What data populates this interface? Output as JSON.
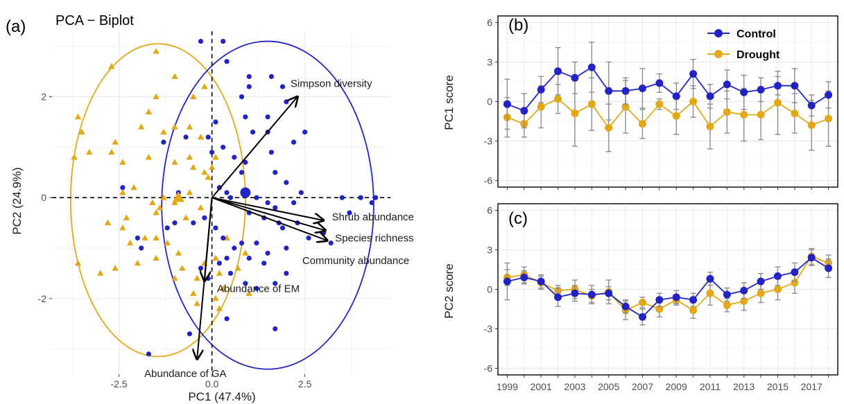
{
  "colors": {
    "control": "#2323c3",
    "drought": "#e2a817",
    "errorbar": "#8c8c8c",
    "grid": "#ebebeb",
    "axis": "#000000"
  },
  "panel_a_label": "(a)",
  "panel_b_label": "(b)",
  "panel_c_label": "(c)",
  "chart_data": [
    {
      "type": "scatter",
      "title": "PCA − Biplot",
      "xlabel": "PC1 (47.4%)",
      "ylabel": "PC2 (24.9%)",
      "xlim": [
        -4.3,
        4.8
      ],
      "ylim": [
        -3.5,
        3.3
      ],
      "xticks": [
        -2.5,
        0.0,
        2.5
      ],
      "yticks": [
        -2,
        0,
        2
      ],
      "xtick_labels": [
        "-2.5",
        "0.0",
        "2.5"
      ],
      "ytick_labels": [
        "-2",
        "0",
        "2"
      ],
      "grid": true,
      "reference_lines": "dashed lines at x=0 and y=0",
      "series": [
        {
          "name": "Control",
          "marker": "circle",
          "points": [
            [
              -0.3,
              3.1
            ],
            [
              0.3,
              3.1
            ],
            [
              0.4,
              2.7
            ],
            [
              1.0,
              2.4
            ],
            [
              1.0,
              2.2
            ],
            [
              0.8,
              2.0
            ],
            [
              1.9,
              2.2
            ],
            [
              1.6,
              2.4
            ],
            [
              2.0,
              1.9
            ],
            [
              1.5,
              1.6
            ],
            [
              0.9,
              1.6
            ],
            [
              1.1,
              1.3
            ],
            [
              1.5,
              1.3
            ],
            [
              0.1,
              1.5
            ],
            [
              -0.1,
              1.2
            ],
            [
              0.3,
              1.0
            ],
            [
              0.0,
              0.9
            ],
            [
              0.6,
              0.8
            ],
            [
              0.9,
              0.7
            ],
            [
              0.8,
              0.5
            ],
            [
              1.6,
              0.9
            ],
            [
              2.2,
              1.1
            ],
            [
              2.5,
              1.3
            ],
            [
              1.7,
              0.5
            ],
            [
              2.0,
              0.3
            ],
            [
              2.4,
              0.1
            ],
            [
              -1.3,
              1.1
            ],
            [
              -0.7,
              1.2
            ],
            [
              -2.4,
              0.2
            ],
            [
              -0.9,
              0.1
            ],
            [
              0.2,
              0.2
            ],
            [
              0.4,
              0.1
            ],
            [
              0.5,
              0.0
            ],
            [
              1.2,
              0.0
            ],
            [
              1.5,
              -0.1
            ],
            [
              1.7,
              -0.2
            ],
            [
              1.0,
              -0.3
            ],
            [
              1.4,
              -0.4
            ],
            [
              1.8,
              -0.5
            ],
            [
              1.9,
              -0.6
            ],
            [
              2.2,
              -0.1
            ],
            [
              2.3,
              -0.5
            ],
            [
              2.0,
              -1.0
            ],
            [
              2.6,
              -0.8
            ],
            [
              3.0,
              -0.7
            ],
            [
              3.2,
              -0.9
            ],
            [
              3.7,
              -0.3
            ],
            [
              4.0,
              0.0
            ],
            [
              4.3,
              -0.1
            ],
            [
              4.4,
              0.0
            ],
            [
              3.5,
              0.0
            ],
            [
              -0.2,
              -0.4
            ],
            [
              -0.5,
              -0.5
            ],
            [
              0.1,
              -0.6
            ],
            [
              0.3,
              -0.8
            ],
            [
              0.8,
              -0.9
            ],
            [
              1.2,
              -0.9
            ],
            [
              1.5,
              -1.1
            ],
            [
              1.4,
              -1.3
            ],
            [
              1.0,
              -1.2
            ],
            [
              0.6,
              -1.0
            ],
            [
              0.4,
              -1.2
            ],
            [
              0.2,
              -1.3
            ],
            [
              -0.3,
              -1.4
            ],
            [
              -0.1,
              -1.6
            ],
            [
              0.5,
              -1.5
            ],
            [
              0.9,
              -1.7
            ],
            [
              1.2,
              -1.8
            ],
            [
              1.7,
              -1.7
            ],
            [
              2.0,
              -1.5
            ],
            [
              -1.0,
              -0.5
            ],
            [
              -2.0,
              -0.8
            ],
            [
              -1.9,
              -1.0
            ],
            [
              -1.2,
              -0.6
            ],
            [
              -1.7,
              -3.1
            ],
            [
              -0.6,
              -2.7
            ],
            [
              0.4,
              -2.4
            ],
            [
              1.7,
              -2.6
            ]
          ]
        },
        {
          "name": "Drought",
          "marker": "triangle",
          "points": [
            [
              -1.5,
              2.9
            ],
            [
              -2.7,
              2.6
            ],
            [
              -1.0,
              2.4
            ],
            [
              -0.2,
              2.2
            ],
            [
              -0.5,
              2.0
            ],
            [
              -1.5,
              2.0
            ],
            [
              -1.7,
              1.7
            ],
            [
              -1.9,
              1.4
            ],
            [
              -1.0,
              1.4
            ],
            [
              -1.3,
              1.3
            ],
            [
              -0.6,
              1.4
            ],
            [
              -0.3,
              1.2
            ],
            [
              -3.6,
              1.6
            ],
            [
              -3.5,
              1.3
            ],
            [
              -2.6,
              1.1
            ],
            [
              -3.3,
              0.9
            ],
            [
              -3.7,
              0.8
            ],
            [
              -2.7,
              0.9
            ],
            [
              -2.4,
              0.7
            ],
            [
              -1.7,
              0.8
            ],
            [
              -1.0,
              0.7
            ],
            [
              -0.6,
              0.8
            ],
            [
              -0.5,
              0.6
            ],
            [
              -0.2,
              0.5
            ],
            [
              -0.1,
              0.4
            ],
            [
              0.0,
              0.6
            ],
            [
              0.1,
              0.8
            ],
            [
              -2.4,
              0.1
            ],
            [
              -2.1,
              0.2
            ],
            [
              -1.6,
              -0.1
            ],
            [
              -1.5,
              -0.3
            ],
            [
              -1.4,
              -0.2
            ],
            [
              -1.0,
              -0.1
            ],
            [
              -1.3,
              0.0
            ],
            [
              -0.6,
              0.1
            ],
            [
              -0.3,
              -0.2
            ],
            [
              -0.7,
              -0.4
            ],
            [
              -2.3,
              -0.4
            ],
            [
              -2.8,
              -0.5
            ],
            [
              -2.4,
              -0.6
            ],
            [
              -2.2,
              -0.9
            ],
            [
              -1.8,
              -0.8
            ],
            [
              -1.5,
              -0.8
            ],
            [
              -1.2,
              -0.9
            ],
            [
              -1.5,
              -1.2
            ],
            [
              -2.0,
              -1.3
            ],
            [
              -2.6,
              -1.4
            ],
            [
              -3.0,
              -1.5
            ],
            [
              -3.6,
              -1.3
            ],
            [
              -0.9,
              -1.1
            ],
            [
              -0.8,
              -1.4
            ],
            [
              -1.0,
              -1.6
            ],
            [
              -0.4,
              -1.6
            ],
            [
              -0.5,
              -1.9
            ],
            [
              -0.2,
              -1.3
            ],
            [
              0.1,
              -1.2
            ],
            [
              0.2,
              -1.5
            ],
            [
              0.3,
              -1.8
            ],
            [
              0.1,
              -2.0
            ],
            [
              -0.4,
              -2.1
            ],
            [
              0.2,
              -2.2
            ],
            [
              1.0,
              -1.9
            ],
            [
              0.7,
              -1.4
            ],
            [
              0.9,
              -1.1
            ],
            [
              0.4,
              -0.8
            ]
          ]
        }
      ],
      "centroids": {
        "Control": [
          0.9,
          0.1
        ],
        "Drought": [
          -0.9,
          0.0
        ]
      },
      "ellipses": {
        "Control": {
          "center": [
            1.5,
            -0.15
          ],
          "rx": 2.85,
          "ry": 3.25
        },
        "Drought": {
          "center": [
            -1.45,
            -0.05
          ],
          "rx": 2.35,
          "ry": 3.1
        }
      },
      "loadings": [
        {
          "label": "Simpson diversity",
          "x": 2.3,
          "y": 2.0
        },
        {
          "label": "Shrub abundance",
          "x": 3.0,
          "y": -0.45
        },
        {
          "label": "Species richness",
          "x": 3.05,
          "y": -0.65
        },
        {
          "label": "Community abundance",
          "x": 3.1,
          "y": -0.85
        },
        {
          "label": "Abundance of EM",
          "x": -0.2,
          "y": -1.65
        },
        {
          "label": "Abundance of GA",
          "x": -0.4,
          "y": -3.2
        }
      ]
    },
    {
      "type": "line",
      "ylabel": "PC1 score",
      "ylim": [
        -6.5,
        6.5
      ],
      "yticks": [
        -6,
        -3,
        0,
        3,
        6
      ],
      "ytick_labels": [
        "-6",
        "-3",
        "0",
        "3",
        "6"
      ],
      "grid": true,
      "legend": "top-right",
      "x": [
        1999,
        2000,
        2001,
        2002,
        2003,
        2004,
        2005,
        2006,
        2007,
        2008,
        2009,
        2010,
        2011,
        2012,
        2013,
        2014,
        2015,
        2016,
        2017,
        2018
      ],
      "series": [
        {
          "name": "Control",
          "values": [
            -0.2,
            -0.7,
            0.9,
            2.3,
            1.8,
            2.6,
            0.8,
            0.8,
            1.0,
            1.4,
            0.4,
            2.1,
            0.4,
            1.3,
            0.7,
            0.9,
            1.2,
            1.2,
            -0.3,
            0.5
          ],
          "errors": [
            1.9,
            1.3,
            1.0,
            1.8,
            1.2,
            1.9,
            2.2,
            1.0,
            1.5,
            0.7,
            1.0,
            1.1,
            0.9,
            1.1,
            1.3,
            0.9,
            0.7,
            1.3,
            0.8,
            1.0
          ]
        },
        {
          "name": "Drought",
          "values": [
            -1.2,
            -1.7,
            -0.4,
            0.2,
            -0.9,
            -0.2,
            -2.0,
            -0.4,
            -1.7,
            -0.2,
            -1.1,
            0.0,
            -1.9,
            -0.8,
            -1.0,
            -1.0,
            -0.1,
            -0.9,
            -1.8,
            -1.3
          ],
          "errors": [
            1.5,
            1.0,
            1.6,
            1.1,
            2.5,
            2.0,
            1.8,
            2.0,
            1.1,
            0.4,
            1.4,
            1.2,
            1.7,
            1.6,
            2.0,
            1.9,
            2.4,
            1.5,
            1.9,
            2.1
          ]
        }
      ]
    },
    {
      "type": "line",
      "ylabel": "PC2 score",
      "ylim": [
        -6.5,
        6.5
      ],
      "yticks": [
        -6,
        -3,
        0,
        3,
        6
      ],
      "ytick_labels": [
        "-6",
        "-3",
        "0",
        "3",
        "6"
      ],
      "xticks": [
        1999,
        2001,
        2003,
        2005,
        2007,
        2009,
        2011,
        2013,
        2015,
        2017
      ],
      "xtick_labels": [
        "1999",
        "2001",
        "2003",
        "2005",
        "2007",
        "2009",
        "2011",
        "2013",
        "2015",
        "2017"
      ],
      "grid": true,
      "x": [
        1999,
        2000,
        2001,
        2002,
        2003,
        2004,
        2005,
        2006,
        2007,
        2008,
        2009,
        2010,
        2011,
        2012,
        2013,
        2014,
        2015,
        2016,
        2017,
        2018
      ],
      "series": [
        {
          "name": "Control",
          "values": [
            0.6,
            0.9,
            0.6,
            -0.6,
            -0.3,
            -0.4,
            -0.3,
            -1.3,
            -2.1,
            -0.8,
            -0.6,
            -0.8,
            0.8,
            -0.4,
            -0.1,
            0.6,
            1.0,
            1.3,
            2.4,
            1.6
          ],
          "errors": [
            1.4,
            0.5,
            0.5,
            0.7,
            0.6,
            0.7,
            0.5,
            0.5,
            0.6,
            0.5,
            0.5,
            0.5,
            0.5,
            0.5,
            0.6,
            0.6,
            0.7,
            0.7,
            0.6,
            0.7
          ]
        },
        {
          "name": "Drought",
          "values": [
            0.9,
            1.1,
            0.5,
            -0.1,
            0.0,
            -0.5,
            -0.2,
            -1.6,
            -1.0,
            -1.5,
            -0.8,
            -1.6,
            -0.3,
            -1.2,
            -0.9,
            -0.3,
            0.0,
            0.5,
            2.5,
            2.0
          ],
          "errors": [
            0.6,
            0.6,
            0.5,
            0.4,
            0.7,
            0.5,
            0.9,
            0.7,
            0.4,
            0.6,
            0.4,
            0.6,
            0.9,
            0.5,
            0.7,
            0.7,
            0.8,
            0.8,
            0.6,
            0.6
          ]
        }
      ]
    }
  ]
}
